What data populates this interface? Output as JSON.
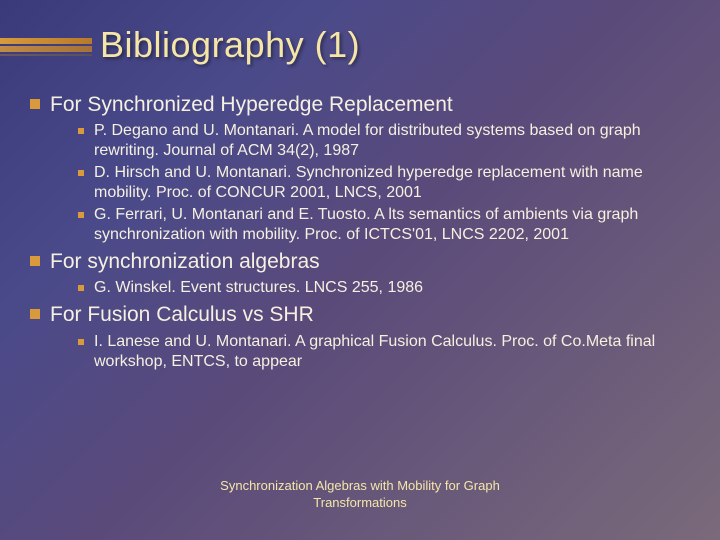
{
  "title": "Bibliography (1)",
  "sections": [
    {
      "heading": "For Synchronized Hyperedge Replacement",
      "items": [
        "P. Degano and U. Montanari. A model for distributed systems based on graph rewriting. Journal of ACM 34(2), 1987",
        "D. Hirsch and U. Montanari. Synchronized hyperedge replacement with name mobility. Proc. of CONCUR 2001, LNCS, 2001",
        "G. Ferrari, U. Montanari and E. Tuosto. A lts semantics of ambients via graph synchronization with mobility. Proc. of ICTCS'01, LNCS 2202, 2001"
      ]
    },
    {
      "heading": "For synchronization algebras",
      "items": [
        "G. Winskel. Event structures. LNCS 255, 1986"
      ]
    },
    {
      "heading": "For Fusion Calculus vs SHR",
      "items": [
        "I. Lanese and U. Montanari. A graphical Fusion Calculus. Proc. of Co.Meta final workshop, ENTCS, to appear"
      ]
    }
  ],
  "footer_line1": "Synchronization Algebras with Mobility for Graph",
  "footer_line2": "Transformations",
  "colors": {
    "title": "#f5e6a8",
    "text": "#f5f0e0",
    "bullet": "#d89a3a",
    "bg_start": "#3a3a7a",
    "bg_end": "#7a6a7a"
  },
  "fonts": {
    "title_size": 36,
    "l1_size": 21,
    "l2_size": 16,
    "footer_size": 13
  }
}
